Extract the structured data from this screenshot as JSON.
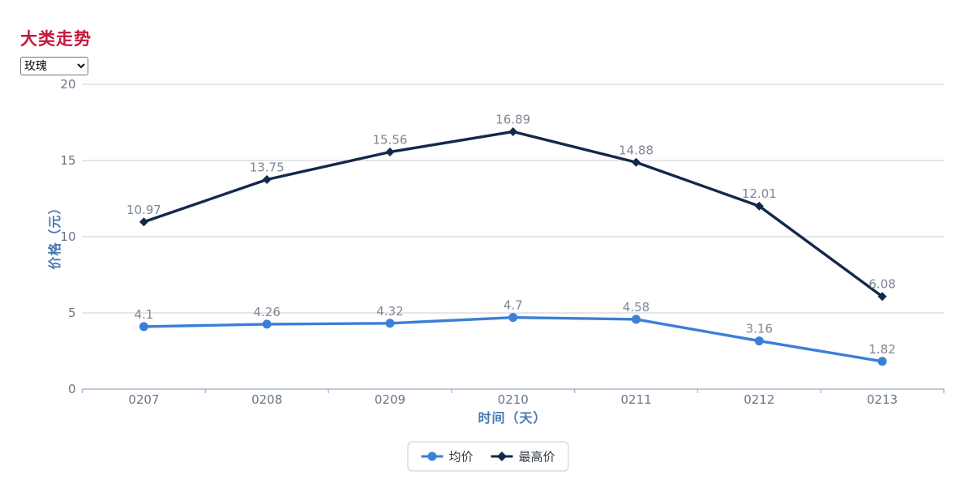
{
  "page": {
    "title": "大类走势"
  },
  "controls": {
    "category_select": {
      "value": "玫瑰",
      "options": [
        "玫瑰"
      ]
    }
  },
  "chart_data": {
    "type": "line",
    "categories": [
      "0207",
      "0208",
      "0209",
      "0210",
      "0211",
      "0212",
      "0213"
    ],
    "series": [
      {
        "name": "均价",
        "marker": "circle",
        "color": "#3b7fd9",
        "values": [
          4.1,
          4.26,
          4.32,
          4.7,
          4.58,
          3.16,
          1.82
        ]
      },
      {
        "name": "最高价",
        "marker": "diamond",
        "color": "#13294b",
        "values": [
          10.97,
          13.75,
          15.56,
          16.89,
          14.88,
          12.01,
          6.08
        ]
      }
    ],
    "title": "大类走势",
    "xlabel": "时间（天）",
    "ylabel": "价格（元）",
    "ylim": [
      0,
      20
    ],
    "yticks": [
      0,
      5,
      10,
      15,
      20
    ],
    "grid": true,
    "legend_position": "bottom",
    "data_labels": true
  },
  "colors": {
    "title": "#c4183c",
    "axis_name": "#4a79b3",
    "tick_label": "#6b7685",
    "data_label": "#7e8795",
    "grid_line": "#cccccc",
    "axis_line": "#a9b7cb",
    "legend_border": "#cccccc",
    "legend_text": "#333a45",
    "series_avg": "#3b7fd9",
    "series_max": "#13294b"
  }
}
